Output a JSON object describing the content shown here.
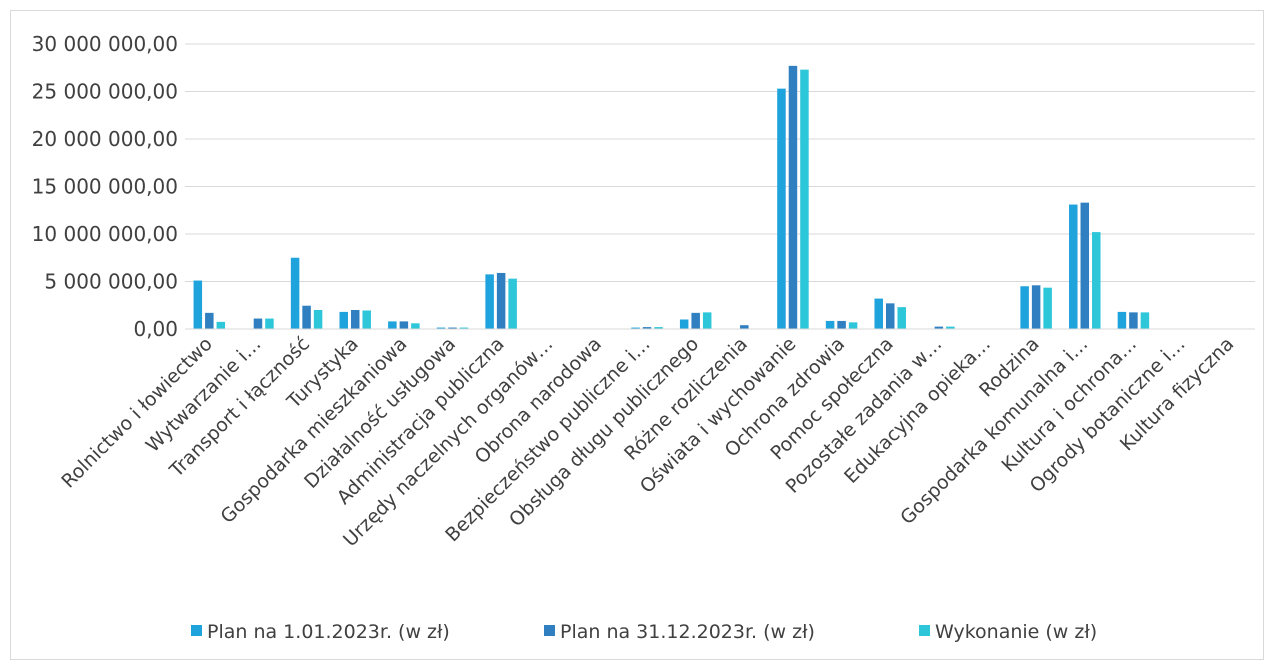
{
  "chart_data": {
    "type": "bar",
    "title": "",
    "xlabel": "",
    "ylabel": "",
    "ylim": [
      0,
      30000000
    ],
    "y_ticks": [
      0,
      5000000,
      10000000,
      15000000,
      20000000,
      25000000,
      30000000
    ],
    "y_tick_labels": [
      "0,00",
      "5 000 000,00",
      "10 000 000,00",
      "15 000 000,00",
      "20 000 000,00",
      "25 000 000,00",
      "30 000 000,00"
    ],
    "grid": true,
    "legend_position": "bottom",
    "categories": [
      "Rolnictwo i łowiectwo",
      "Wytwarzanie i…",
      "Transport i łączność",
      "Turystyka",
      "Gospodarka mieszkaniowa",
      "Działalność usługowa",
      "Administracja publiczna",
      "Urzędy naczelnych organów…",
      "Obrona narodowa",
      "Bezpieczeństwo publiczne i…",
      "Obsługa długu publicznego",
      "Różne rozliczenia",
      "Oświata i wychowanie",
      "Ochrona zdrowia",
      "Pomoc społeczna",
      "Pozostałe zadania w…",
      "Edukacyjna opieka…",
      "Rodzina",
      "Gospodarka komunalna i…",
      "Kultura i ochrona…",
      "Ogrody botaniczne i…",
      "Kultura fizyczna"
    ],
    "series": [
      {
        "name": "Plan na 1.01.2023r. (w zł)",
        "color": "#1ea3dc",
        "values": [
          5100000,
          10000,
          7500000,
          1800000,
          800000,
          150000,
          5750000,
          10000,
          10000,
          150000,
          1000000,
          10000,
          25300000,
          850000,
          3200000,
          10000,
          10000,
          4500000,
          13100000,
          1800000,
          10000,
          50000
        ]
      },
      {
        "name": "Plan na 31.12.2023r. (w zł)",
        "color": "#2f7fc1",
        "values": [
          1700000,
          1100000,
          2450000,
          2000000,
          800000,
          150000,
          5900000,
          10000,
          10000,
          200000,
          1700000,
          400000,
          27700000,
          850000,
          2700000,
          250000,
          10000,
          4600000,
          13300000,
          1750000,
          10000,
          50000
        ]
      },
      {
        "name": "Wykonanie (w zł)",
        "color": "#2ec7d9",
        "values": [
          750000,
          1100000,
          2000000,
          1950000,
          600000,
          150000,
          5300000,
          10000,
          10000,
          200000,
          1750000,
          10000,
          27300000,
          700000,
          2300000,
          250000,
          10000,
          4350000,
          10200000,
          1750000,
          10000,
          50000
        ]
      }
    ]
  }
}
